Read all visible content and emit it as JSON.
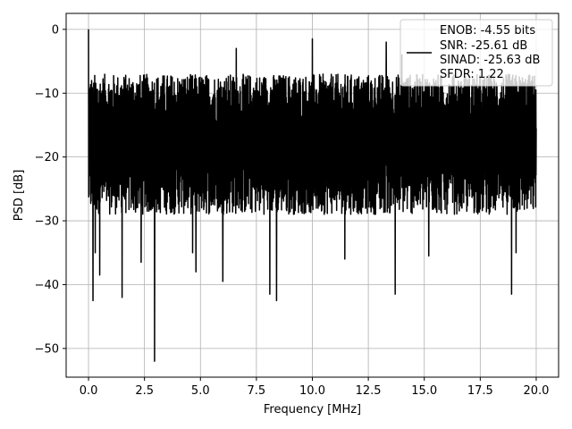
{
  "chart_data": {
    "type": "line",
    "xlabel": "Frequency [MHz]",
    "ylabel": "PSD [dB]",
    "xlim": [
      -1.0,
      21.0
    ],
    "ylim": [
      -54.5,
      2.5
    ],
    "xticks": [
      0.0,
      2.5,
      5.0,
      7.5,
      10.0,
      12.5,
      15.0,
      17.5,
      20.0
    ],
    "xtick_labels": [
      "0.0",
      "2.5",
      "5.0",
      "7.5",
      "10.0",
      "12.5",
      "15.0",
      "17.5",
      "20.0"
    ],
    "yticks": [
      0,
      -10,
      -20,
      -30,
      -40,
      -50
    ],
    "ytick_labels": [
      "0",
      "−10",
      "−20",
      "−30",
      "−40",
      "−50"
    ],
    "grid": true,
    "legend": {
      "placement": "top-right",
      "lines": [
        "ENOB: -4.55 bits",
        "SNR: -25.61 dB",
        "SINAD: -25.63 dB",
        "SFDR: 1.22"
      ]
    },
    "series": [
      {
        "color": "#000000",
        "x_range": [
          0.0,
          20.0
        ],
        "typical_band_db": [
          -29,
          -9
        ],
        "peaks": [
          {
            "x": 0.0,
            "y": 0.0
          },
          {
            "x": 0.05,
            "y": -15.0
          },
          {
            "x": 0.2,
            "y": -42.5
          },
          {
            "x": 0.3,
            "y": -35.0
          },
          {
            "x": 0.5,
            "y": -38.5
          },
          {
            "x": 1.5,
            "y": -42.0
          },
          {
            "x": 2.35,
            "y": -36.5
          },
          {
            "x": 2.95,
            "y": -52.0
          },
          {
            "x": 4.65,
            "y": -35.0
          },
          {
            "x": 4.8,
            "y": -38.0
          },
          {
            "x": 6.0,
            "y": -39.5
          },
          {
            "x": 8.1,
            "y": -41.5
          },
          {
            "x": 8.4,
            "y": -42.5
          },
          {
            "x": 10.0,
            "y": -33.5
          },
          {
            "x": 11.45,
            "y": -36.0
          },
          {
            "x": 13.7,
            "y": -41.5
          },
          {
            "x": 15.2,
            "y": -35.5
          },
          {
            "x": 18.9,
            "y": -41.5
          },
          {
            "x": 19.1,
            "y": -35.0
          },
          {
            "x": 10.0,
            "y": -1.5
          },
          {
            "x": 13.3,
            "y": -2.0
          },
          {
            "x": 6.6,
            "y": -3.0
          },
          {
            "x": 14.0,
            "y": -4.0
          },
          {
            "x": 20.0,
            "y": -15.5
          }
        ]
      }
    ]
  }
}
